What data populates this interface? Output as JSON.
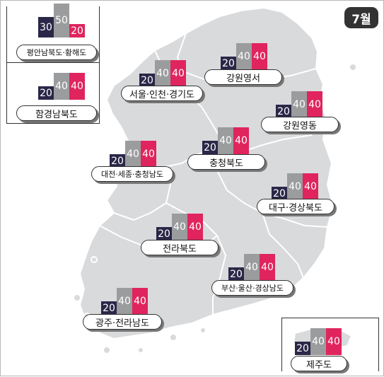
{
  "month": "7월",
  "colors": {
    "navy": "#2a2748",
    "gray": "#9b9c9e",
    "pink": "#e0245e"
  },
  "regions": [
    {
      "name": "평안남북도·황해도",
      "values": [
        30,
        50,
        20
      ]
    },
    {
      "name": "함경남북도",
      "values": [
        20,
        40,
        40
      ]
    },
    {
      "name": "서울·인천·경기도",
      "values": [
        20,
        40,
        40
      ]
    },
    {
      "name": "강원영서",
      "values": [
        20,
        40,
        40
      ]
    },
    {
      "name": "강원영동",
      "values": [
        20,
        40,
        40
      ]
    },
    {
      "name": "대전·세종·충청남도",
      "values": [
        20,
        40,
        40
      ]
    },
    {
      "name": "충청북도",
      "values": [
        20,
        40,
        40
      ]
    },
    {
      "name": "대구·경상북도",
      "values": [
        20,
        40,
        40
      ]
    },
    {
      "name": "전라북도",
      "values": [
        20,
        40,
        40
      ]
    },
    {
      "name": "부산·울산·경상남도",
      "values": [
        20,
        40,
        40
      ]
    },
    {
      "name": "광주·전라남도",
      "values": [
        20,
        40,
        40
      ]
    },
    {
      "name": "제주도",
      "values": [
        20,
        40,
        40
      ]
    }
  ]
}
